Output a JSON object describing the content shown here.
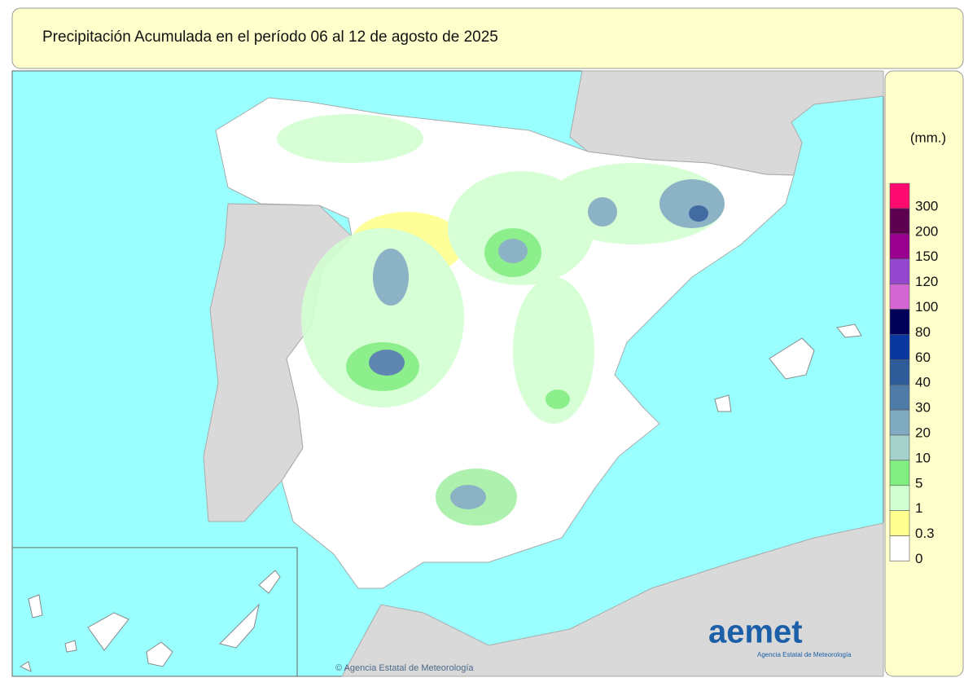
{
  "header": {
    "title": "Precipitación Acumulada en el período 06 al 12 de agosto de 2025"
  },
  "legend": {
    "unit": "(mm.)",
    "items": [
      {
        "label": "300",
        "color": "#ff0a6e"
      },
      {
        "label": "200",
        "color": "#5e0050"
      },
      {
        "label": "150",
        "color": "#9a0090"
      },
      {
        "label": "120",
        "color": "#9448d0"
      },
      {
        "label": "100",
        "color": "#d466d4"
      },
      {
        "label": "80",
        "color": "#000058"
      },
      {
        "label": "60",
        "color": "#0a36a0"
      },
      {
        "label": "40",
        "color": "#2e5c98"
      },
      {
        "label": "30",
        "color": "#4e7aa8"
      },
      {
        "label": "20",
        "color": "#80aac0"
      },
      {
        "label": "10",
        "color": "#a6d2cc"
      },
      {
        "label": "5",
        "color": "#80ee80"
      },
      {
        "label": "1",
        "color": "#d2ffd2"
      },
      {
        "label": "0.3",
        "color": "#ffff90"
      },
      {
        "label": "0",
        "color": "#ffffff"
      }
    ]
  },
  "logo": {
    "name": "aemet",
    "subtitle": "Agencia Estatal de Meteorología"
  },
  "credit": "© Agencia Estatal de Meteorología"
}
